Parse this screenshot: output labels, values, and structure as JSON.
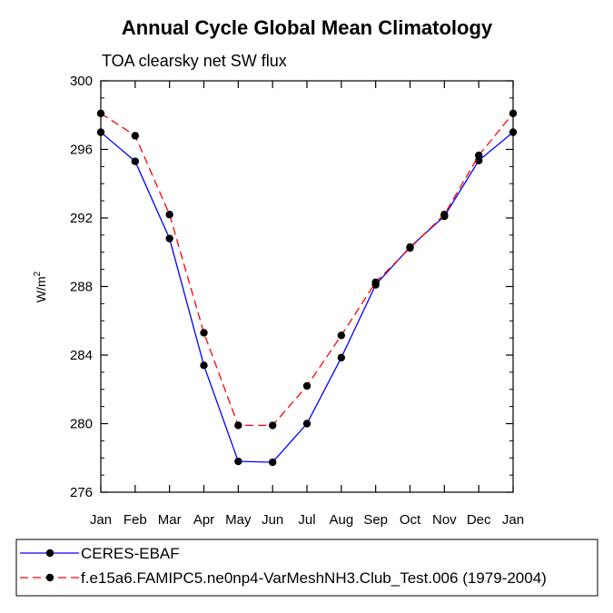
{
  "chart_data": {
    "type": "line",
    "title": "Annual Cycle Global Mean Climatology",
    "subtitle": "TOA clearsky net SW flux",
    "ylabel": "W/m",
    "ylabel_sup": "2",
    "ylim": [
      276,
      300
    ],
    "yticks": [
      "276",
      "280",
      "284",
      "288",
      "292",
      "296",
      "300"
    ],
    "categories": [
      "Jan",
      "Feb",
      "Mar",
      "Apr",
      "May",
      "Jun",
      "Jul",
      "Aug",
      "Sep",
      "Oct",
      "Nov",
      "Dec",
      "Jan"
    ],
    "series": [
      {
        "name": "CERES-EBAF",
        "color": "#0000ff",
        "dash": "solid",
        "values": [
          297.0,
          295.3,
          290.8,
          283.4,
          277.8,
          277.75,
          280.0,
          283.85,
          288.1,
          290.3,
          292.1,
          295.35,
          297.0
        ]
      },
      {
        "name": "f.e15a6.FAMIPC5.ne0np4-VarMeshNH3.Club_Test.006 (1979-2004)",
        "color": "#ff0000",
        "dash": "dashed",
        "values": [
          298.1,
          296.8,
          292.2,
          285.3,
          279.9,
          279.9,
          282.2,
          285.15,
          288.25,
          290.25,
          292.2,
          295.65,
          298.1
        ]
      }
    ]
  }
}
